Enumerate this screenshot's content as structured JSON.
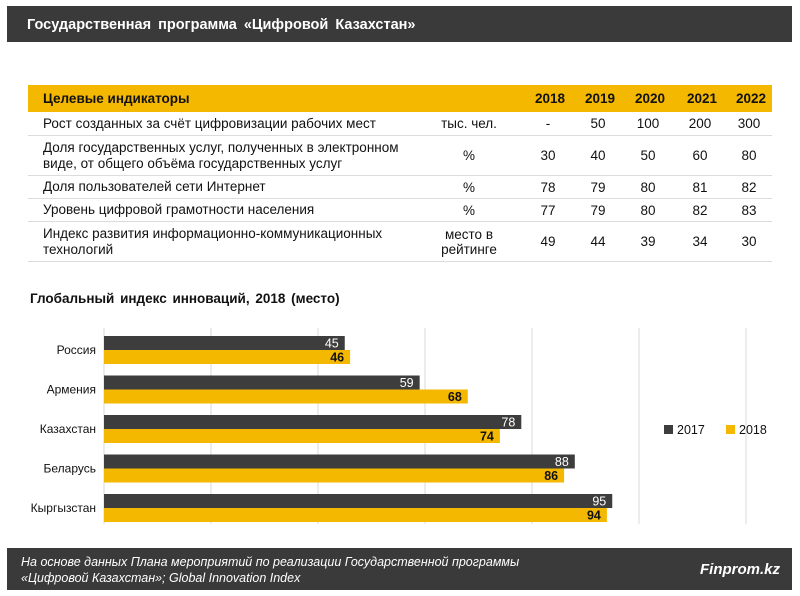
{
  "header": {
    "title": "Государственная программа «Цифровой Казахстан»"
  },
  "table": {
    "header_label": "Целевые индикаторы",
    "years": [
      "2018",
      "2019",
      "2020",
      "2021",
      "2022"
    ],
    "rows": [
      {
        "name": "Рост созданных за счёт цифровизации рабочих мест",
        "unit": "тыс. чел.",
        "values": [
          "-",
          "50",
          "100",
          "200",
          "300"
        ]
      },
      {
        "name": "Доля государственных услуг, полученных в электронном виде, от общего объёма государственных услуг",
        "unit": "%",
        "values": [
          "30",
          "40",
          "50",
          "60",
          "80"
        ]
      },
      {
        "name": "Доля пользователей сети Интернет",
        "unit": "%",
        "values": [
          "78",
          "79",
          "80",
          "81",
          "82"
        ]
      },
      {
        "name": "Уровень цифровой грамотности населения",
        "unit": "%",
        "values": [
          "77",
          "79",
          "80",
          "82",
          "83"
        ]
      },
      {
        "name": "Индекс развития информационно-коммуникационных технологий",
        "unit": "место в рейтинге",
        "values": [
          "49",
          "44",
          "39",
          "34",
          "30"
        ]
      }
    ]
  },
  "chart_data": {
    "type": "bar",
    "orientation": "horizontal",
    "title": "Глобальный индекс инноваций, 2018 (место)",
    "categories": [
      "Россия",
      "Армения",
      "Казахстан",
      "Беларусь",
      "Кыргызстан"
    ],
    "series": [
      {
        "name": "2017",
        "values": [
          45,
          59,
          78,
          88,
          95
        ]
      },
      {
        "name": "2018",
        "values": [
          46,
          68,
          74,
          86,
          94
        ]
      }
    ],
    "xlim": [
      0,
      120
    ],
    "grid": true,
    "legend": "right",
    "colors": {
      "2017": "#3d3d3d",
      "2018": "#f5b800"
    }
  },
  "footer": {
    "note_line1": "На основе данных Плана мероприятий по реализации Государственной программы",
    "note_line2": "«Цифровой Казахстан»; Global Innovation Index",
    "brand": "Finprom.kz"
  }
}
